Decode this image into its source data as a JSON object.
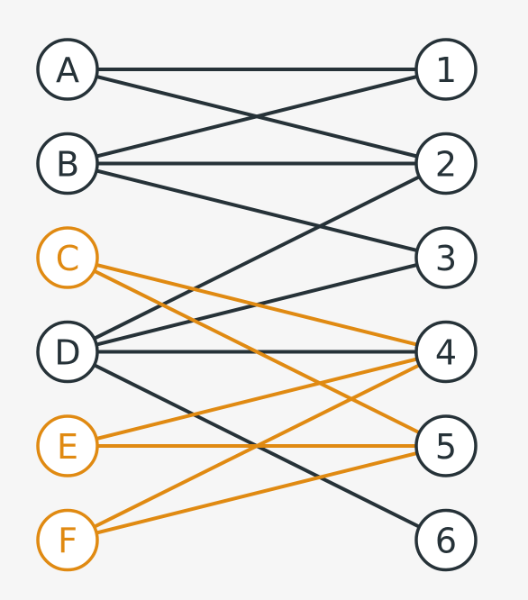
{
  "colors": {
    "dark": "#263238",
    "highlight": "#e08a12"
  },
  "left_nodes": [
    {
      "id": "A",
      "label": "A",
      "highlight": false
    },
    {
      "id": "B",
      "label": "B",
      "highlight": false
    },
    {
      "id": "C",
      "label": "C",
      "highlight": true
    },
    {
      "id": "D",
      "label": "D",
      "highlight": false
    },
    {
      "id": "E",
      "label": "E",
      "highlight": true
    },
    {
      "id": "F",
      "label": "F",
      "highlight": true
    }
  ],
  "right_nodes": [
    {
      "id": "1",
      "label": "1"
    },
    {
      "id": "2",
      "label": "2"
    },
    {
      "id": "3",
      "label": "3"
    },
    {
      "id": "4",
      "label": "4"
    },
    {
      "id": "5",
      "label": "5"
    },
    {
      "id": "6",
      "label": "6"
    }
  ],
  "edges": [
    {
      "from": "A",
      "to": "1",
      "highlight": false
    },
    {
      "from": "A",
      "to": "2",
      "highlight": false
    },
    {
      "from": "B",
      "to": "1",
      "highlight": false
    },
    {
      "from": "B",
      "to": "2",
      "highlight": false
    },
    {
      "from": "B",
      "to": "3",
      "highlight": false
    },
    {
      "from": "D",
      "to": "2",
      "highlight": false
    },
    {
      "from": "D",
      "to": "3",
      "highlight": false
    },
    {
      "from": "D",
      "to": "4",
      "highlight": false
    },
    {
      "from": "D",
      "to": "6",
      "highlight": false
    },
    {
      "from": "C",
      "to": "4",
      "highlight": true
    },
    {
      "from": "C",
      "to": "5",
      "highlight": true
    },
    {
      "from": "E",
      "to": "4",
      "highlight": true
    },
    {
      "from": "E",
      "to": "5",
      "highlight": true
    },
    {
      "from": "F",
      "to": "4",
      "highlight": true
    },
    {
      "from": "F",
      "to": "5",
      "highlight": true
    }
  ]
}
